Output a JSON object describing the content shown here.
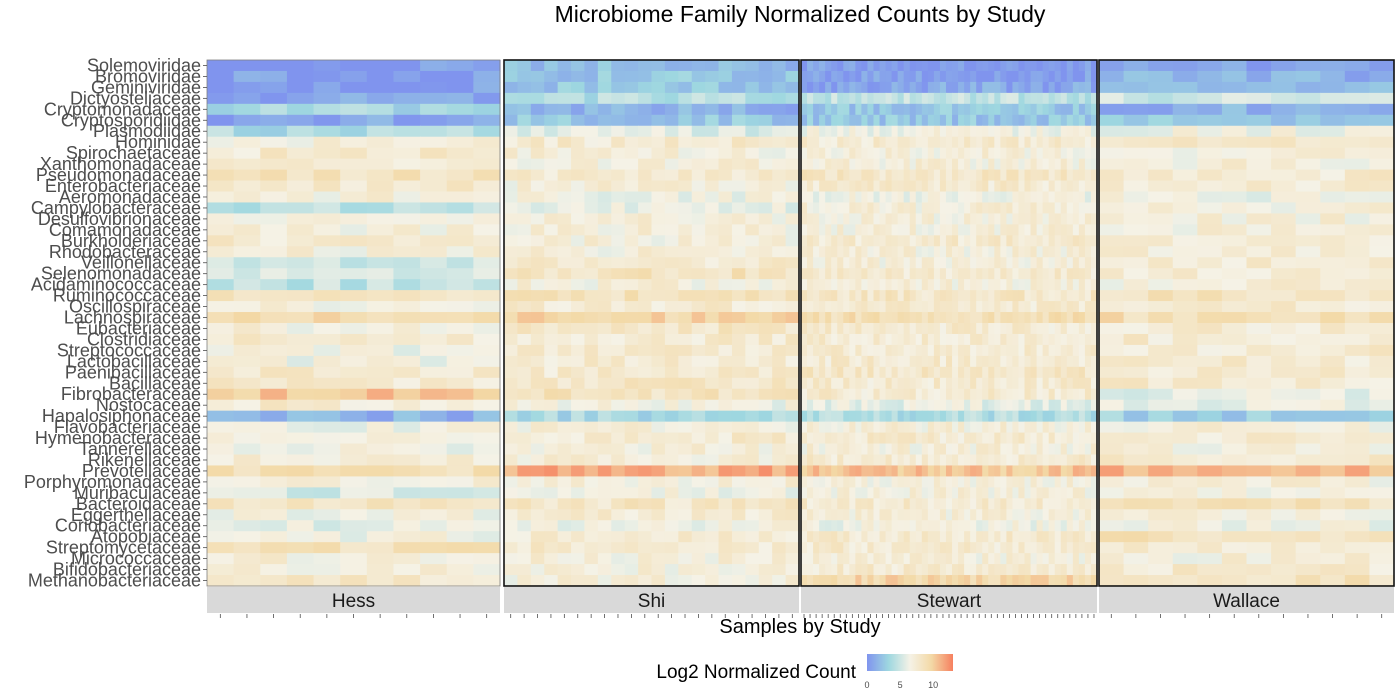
{
  "chart_data": {
    "type": "heatmap",
    "title": "Microbiome Family Normalized Counts by Study",
    "xlabel": "Samples by Study",
    "ylabel": "",
    "legend_title": "Log2 Normalized Count",
    "legend_ticks": [
      0,
      5,
      10
    ],
    "value_range": [
      0,
      13
    ],
    "colors": [
      "#8094ee",
      "#9ed7e0",
      "#f5f2e6",
      "#f3d9a6",
      "#f6805f"
    ],
    "families": [
      "Solemoviridae",
      "Bromoviridae",
      "Geminiviridae",
      "Dictyosteliaceae",
      "Cryptomonadaceae",
      "Cryptosporidiidae",
      "Plasmodiidae",
      "Hominidae",
      "Spirochaetaceae",
      "Xanthomonadaceae",
      "Pseudomonadaceae",
      "Enterobacteriaceae",
      "Aeromonadaceae",
      "Campylobacteraceae",
      "Desulfovibrionaceae",
      "Comamonadaceae",
      "Burkholderiaceae",
      "Rhodobacteraceae",
      "Veillonellaceae",
      "Selenomonadaceae",
      "Acidaminococcaceae",
      "Ruminococcaceae",
      "Oscillospiraceae",
      "Lachnospiraceae",
      "Eubacteriaceae",
      "Clostridiaceae",
      "Streptococcaceae",
      "Lactobacillaceae",
      "Paenibacillaceae",
      "Bacillaceae",
      "Fibrobacteraceae",
      "Nostocaceae",
      "Hapalosiphonaceae",
      "Flavobacteriaceae",
      "Hymenobacteraceae",
      "Tannerellaceae",
      "Rikenellaceae",
      "Prevotellaceae",
      "Porphyromonadaceae",
      "Muribaculaceae",
      "Bacteroidaceae",
      "Eggerthellaceae",
      "Coriobacteriaceae",
      "Atopobiaceae",
      "Streptomycetaceae",
      "Micrococcaceae",
      "Bifidobacteriaceae",
      "Methanobacteriaceae"
    ],
    "studies": [
      {
        "name": "Hess",
        "samples": 11,
        "family_means": [
          0.5,
          0.5,
          0.5,
          0.8,
          3.5,
          1.0,
          3.8,
          7.0,
          7.5,
          7.0,
          8.5,
          7.5,
          7.0,
          4.5,
          7.0,
          7.0,
          7.5,
          7.0,
          5.0,
          5.0,
          4.5,
          8.5,
          7.0,
          9.0,
          7.0,
          7.5,
          6.5,
          6.5,
          7.5,
          7.5,
          10.5,
          7.5,
          1.5,
          6.5,
          7.0,
          6.5,
          7.0,
          9.0,
          7.0,
          5.5,
          8.5,
          6.5,
          6.0,
          6.5,
          8.5,
          7.0,
          7.0,
          8.0
        ]
      },
      {
        "name": "Shi",
        "samples": 22,
        "family_means": [
          2.0,
          2.5,
          2.5,
          4.0,
          1.5,
          2.5,
          5.5,
          7.5,
          7.0,
          7.0,
          7.5,
          7.0,
          6.5,
          6.0,
          7.0,
          7.0,
          7.0,
          7.0,
          7.5,
          8.5,
          7.0,
          8.5,
          7.5,
          9.5,
          8.0,
          7.5,
          7.5,
          7.5,
          7.5,
          8.0,
          8.5,
          6.5,
          3.5,
          7.0,
          7.5,
          7.0,
          7.0,
          11.5,
          7.0,
          6.5,
          8.0,
          7.5,
          6.5,
          7.5,
          7.5,
          7.0,
          7.0,
          7.0
        ]
      },
      {
        "name": "Stewart",
        "samples": 49,
        "family_means": [
          0.5,
          0.5,
          1.0,
          4.5,
          2.5,
          2.5,
          6.5,
          7.5,
          7.0,
          7.0,
          8.0,
          7.5,
          6.5,
          7.0,
          7.0,
          7.0,
          7.5,
          7.0,
          7.0,
          7.5,
          7.0,
          8.0,
          7.5,
          9.0,
          7.5,
          7.5,
          7.5,
          7.5,
          8.0,
          7.5,
          7.5,
          6.0,
          4.0,
          7.0,
          7.5,
          7.0,
          7.5,
          10.5,
          7.0,
          7.0,
          7.5,
          7.0,
          6.5,
          7.5,
          7.5,
          7.0,
          7.5,
          9.5
        ]
      },
      {
        "name": "Wallace",
        "samples": 12,
        "family_means": [
          0.5,
          1.5,
          2.5,
          5.0,
          1.5,
          2.5,
          6.5,
          7.5,
          7.0,
          7.0,
          7.5,
          7.5,
          6.5,
          7.0,
          7.0,
          7.0,
          7.5,
          7.0,
          7.5,
          7.5,
          7.0,
          8.5,
          7.5,
          9.0,
          7.5,
          7.5,
          7.5,
          7.5,
          7.5,
          7.5,
          6.0,
          6.0,
          3.0,
          7.0,
          7.5,
          7.0,
          7.5,
          11.0,
          7.0,
          7.0,
          8.5,
          7.0,
          6.5,
          8.5,
          7.5,
          7.0,
          7.5,
          8.5
        ]
      }
    ]
  }
}
